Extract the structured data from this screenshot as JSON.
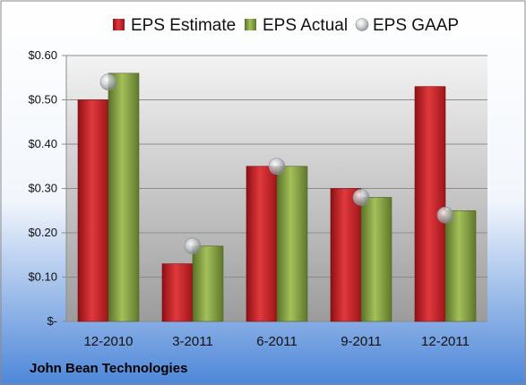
{
  "company": "John Bean Technologies",
  "colors": {
    "estimate": "#c41f25",
    "actual": "#7f9b3b",
    "gaap": "#b9bcc2"
  },
  "chart_data": {
    "type": "bar",
    "categories": [
      "12-2010",
      "3-2011",
      "6-2011",
      "9-2011",
      "12-2011"
    ],
    "series": [
      {
        "name": "EPS Estimate",
        "type": "bar",
        "values": [
          0.5,
          0.13,
          0.35,
          0.3,
          0.53
        ]
      },
      {
        "name": "EPS Actual",
        "type": "bar",
        "values": [
          0.56,
          0.17,
          0.35,
          0.28,
          0.25
        ]
      },
      {
        "name": "EPS GAAP",
        "type": "scatter",
        "values": [
          0.54,
          0.17,
          0.35,
          0.28,
          0.24
        ]
      }
    ],
    "ylim": [
      0,
      0.6
    ],
    "yticks": [
      0,
      0.1,
      0.2,
      0.3,
      0.4,
      0.5,
      0.6
    ],
    "ytick_labels": [
      "$-",
      "$0.10",
      "$0.20",
      "$0.30",
      "$0.40",
      "$0.50",
      "$0.60"
    ],
    "grid": true,
    "legend_position": "top"
  }
}
